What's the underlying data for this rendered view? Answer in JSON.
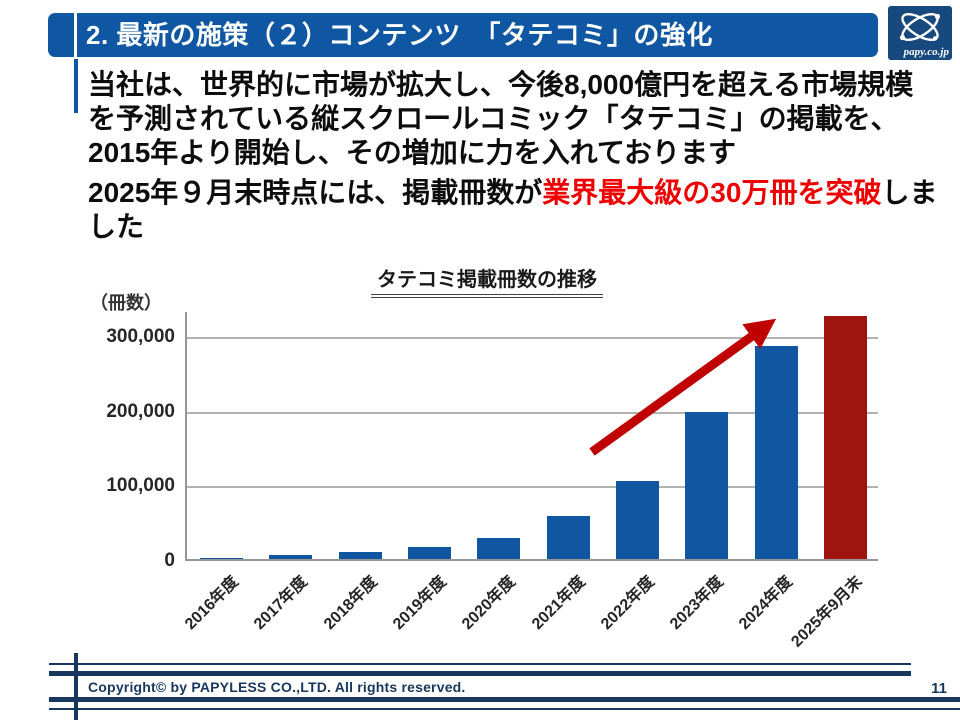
{
  "header": {
    "title": "2. 最新の施策（２）コンテンツ　「タテコミ」の強化",
    "logo_text": "papy.co.jp"
  },
  "body": {
    "paragraph1": "当社は、世界的に市場が拡大し、今後8,000億円を超える市場規模を予測されている縦スクロールコミック「タテコミ」の掲載を、2015年より開始し、その増加に力を入れております",
    "paragraph2": {
      "prefix": "2025年９月末時点には、掲載冊数が",
      "highlight": "業界最大級の30万冊を突破",
      "suffix": "しました"
    }
  },
  "chart_data": {
    "type": "bar",
    "title": "タテコミ掲載冊数の推移",
    "xlabel": "",
    "ylabel": "（冊数）",
    "categories": [
      "2016年度",
      "2017年度",
      "2018年度",
      "2019年度",
      "2020年度",
      "2021年度",
      "2022年度",
      "2023年度",
      "2024年度",
      "2025年9月末"
    ],
    "values": [
      2000,
      5000,
      10000,
      16000,
      28000,
      57000,
      105000,
      197000,
      285000,
      325000
    ],
    "highlight_index": 9,
    "yticks": [
      0,
      100000,
      200000,
      300000
    ],
    "ytick_labels": [
      "0",
      "100,000",
      "200,000",
      "300,000"
    ],
    "ylim": [
      0,
      333000
    ],
    "grid": true,
    "legend": false,
    "annotation": "growth-arrow",
    "bar_color": "#1056A0",
    "highlight_color": "#A01410",
    "arrow_color": "#C00000"
  },
  "footer": {
    "copyright": "Copyright© by PAPYLESS CO.,LTD. All rights reserved.",
    "page_number": "11"
  },
  "colors": {
    "accent_blue": "#0F57A3",
    "navy": "#17375E",
    "logo_navy": "#17497F",
    "highlight_red": "#EE0000"
  }
}
